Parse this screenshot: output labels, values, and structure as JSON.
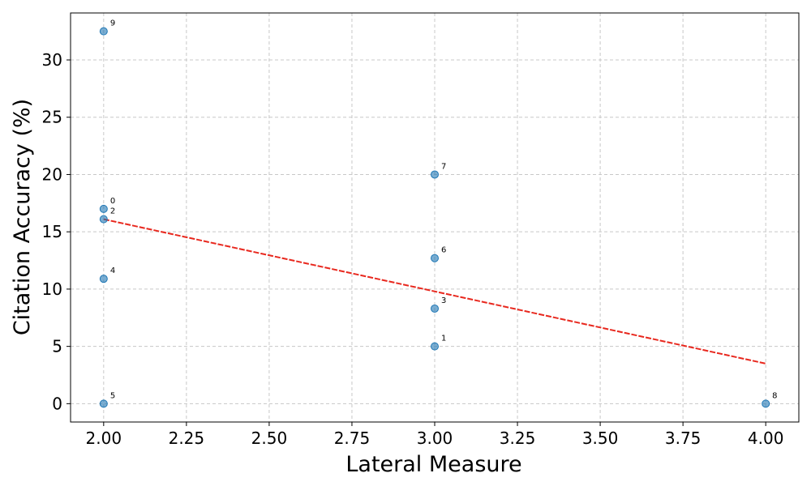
{
  "chart_data": {
    "type": "scatter",
    "title": "",
    "xlabel": "Lateral Measure",
    "ylabel": "Citation Accuracy (%)",
    "xlim": [
      1.9,
      4.1
    ],
    "ylim": [
      -1.6,
      34.1
    ],
    "x_ticks": [
      2.0,
      2.25,
      2.5,
      2.75,
      3.0,
      3.25,
      3.5,
      3.75,
      4.0
    ],
    "x_tick_labels": [
      "2.00",
      "2.25",
      "2.50",
      "2.75",
      "3.00",
      "3.25",
      "3.50",
      "3.75",
      "4.00"
    ],
    "y_ticks": [
      0,
      5,
      10,
      15,
      20,
      25,
      30
    ],
    "y_tick_labels": [
      "0",
      "5",
      "10",
      "15",
      "20",
      "25",
      "30"
    ],
    "grid": true,
    "grid_style": "dashed",
    "point_color": "#1f77b4",
    "trend_color": "#e8281e",
    "points": [
      {
        "label": "0",
        "x": 2.0,
        "y": 17.0
      },
      {
        "label": "1",
        "x": 3.0,
        "y": 5.0
      },
      {
        "label": "2",
        "x": 2.0,
        "y": 16.1
      },
      {
        "label": "3",
        "x": 3.0,
        "y": 8.3
      },
      {
        "label": "4",
        "x": 2.0,
        "y": 10.9
      },
      {
        "label": "5",
        "x": 2.0,
        "y": 0.0
      },
      {
        "label": "6",
        "x": 3.0,
        "y": 12.7
      },
      {
        "label": "7",
        "x": 3.0,
        "y": 20.0
      },
      {
        "label": "8",
        "x": 4.0,
        "y": 0.0
      },
      {
        "label": "9",
        "x": 2.0,
        "y": 32.5
      }
    ],
    "trend_line": {
      "style": "dashed",
      "x": [
        2.0,
        4.0
      ],
      "y": [
        16.1,
        3.5
      ]
    }
  }
}
